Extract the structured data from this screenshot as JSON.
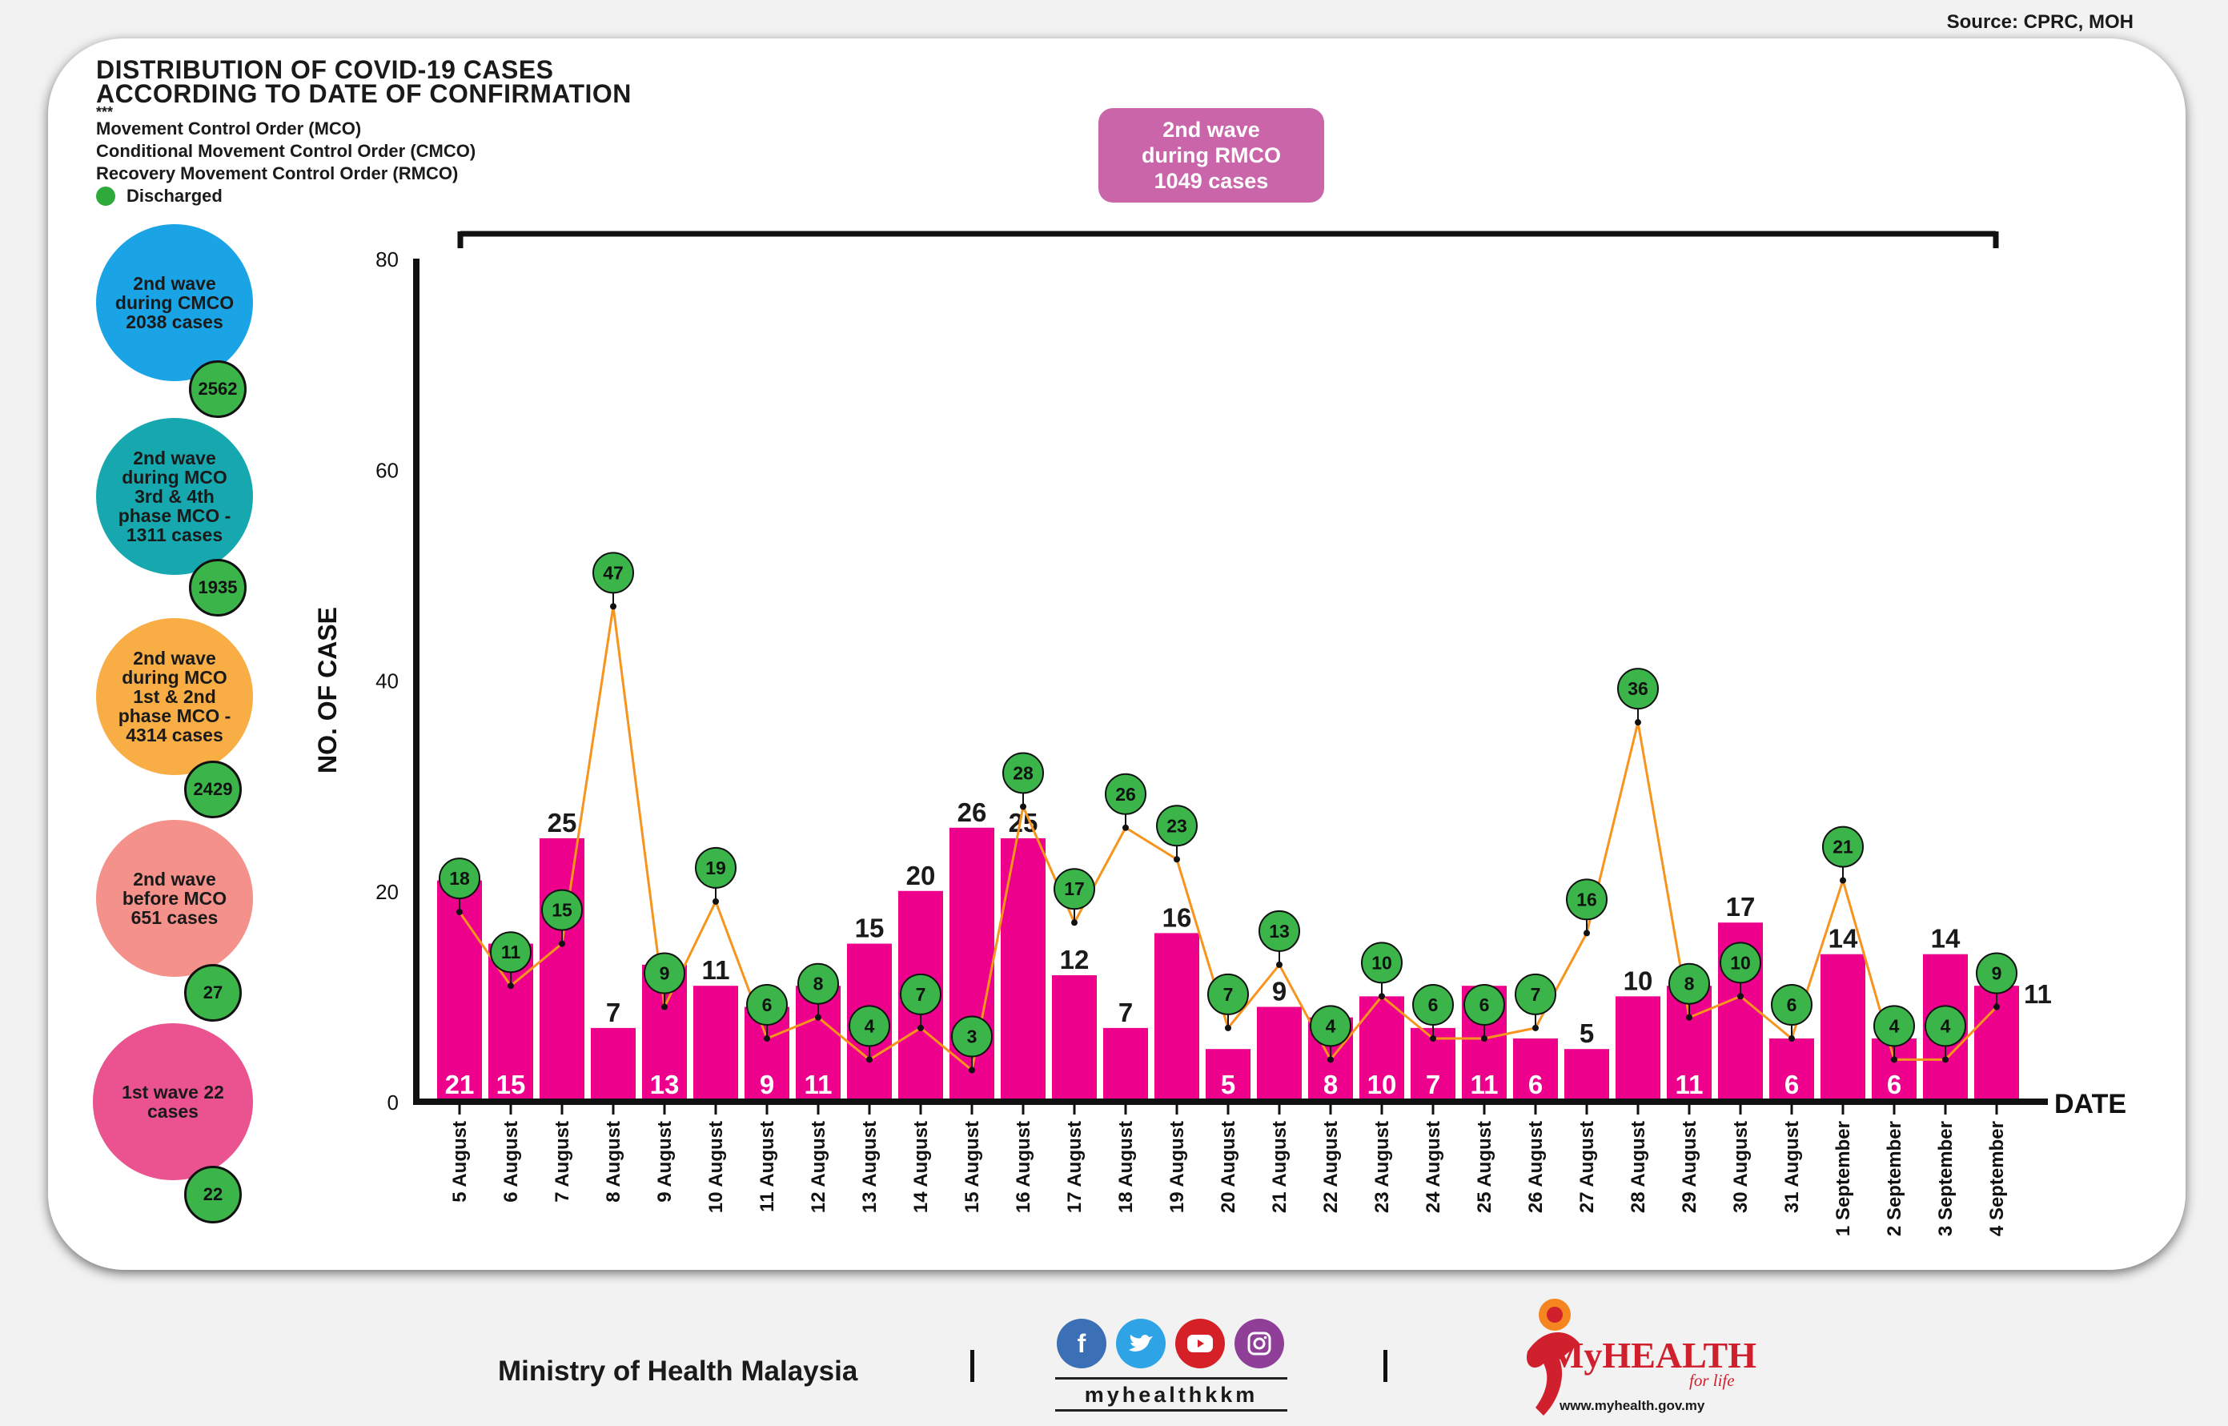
{
  "source": "Source: CPRC, MOH",
  "title_line1": "DISTRIBUTION OF COVID-19 CASES",
  "title_line2": "ACCORDING TO DATE OF CONFIRMATION",
  "stars": "***",
  "legend": {
    "mco": "Movement Control Order (MCO)",
    "cmco": "Conditional Movement Control Order (CMCO)",
    "rmco": "Recovery Movement Control Order (RMCO)",
    "discharged": "Discharged"
  },
  "colors": {
    "bar": "#ec008c",
    "discharged_line": "#f7941d",
    "discharged_badge": "#3bb44a",
    "rmco_box": "#c965a8"
  },
  "waves": [
    {
      "label": "2nd wave during CMCO 2038 cases",
      "color": "#1aa4e6",
      "discharged": "2562"
    },
    {
      "label": "2nd wave during MCO 3rd & 4th phase MCO - 1311 cases",
      "color": "#16a8ae",
      "discharged": "1935"
    },
    {
      "label": "2nd wave during MCO 1st & 2nd phase MCO - 4314 cases",
      "color": "#f9ad45",
      "discharged": "2429"
    },
    {
      "label": "2nd wave before MCO 651 cases",
      "color": "#f3918a",
      "discharged": "27"
    },
    {
      "label": "1st wave 22 cases",
      "color": "#ea5390",
      "discharged": "22"
    }
  ],
  "rmco_box": {
    "line1": "2nd wave",
    "line2": "during RMCO",
    "line3": "1049 cases"
  },
  "footer": {
    "ministry": "Ministry of Health Malaysia",
    "handle": "myhealthkkm",
    "brand": "MyHEALTH",
    "tagline": "for life",
    "url": "www.myhealth.gov.my",
    "social_icons": [
      "facebook-icon",
      "twitter-icon",
      "youtube-icon",
      "instagram-icon"
    ]
  },
  "chart_data": {
    "type": "bar",
    "ylabel": "NO. OF CASE",
    "xlabel": "DATE",
    "ylim": [
      0,
      80
    ],
    "yticks": [
      0,
      20,
      40,
      60,
      80
    ],
    "categories": [
      "5 August",
      "6 August",
      "7 August",
      "8 August",
      "9 August",
      "10 August",
      "11 August",
      "12 August",
      "13 August",
      "14 August",
      "15 August",
      "16 August",
      "17 August",
      "18 August",
      "19 August",
      "20 August",
      "21 August",
      "22 August",
      "23 August",
      "24 August",
      "25 August",
      "26 August",
      "27 August",
      "28 August",
      "29 August",
      "30 August",
      "31 August",
      "1 September",
      "2 September",
      "3 September",
      "4 September"
    ],
    "series": [
      {
        "values": [
          21,
          15,
          25,
          7,
          13,
          11,
          9,
          11,
          15,
          20,
          26,
          25,
          12,
          7,
          16,
          5,
          9,
          8,
          10,
          7,
          11,
          6,
          5,
          10,
          11,
          17,
          6,
          14,
          6,
          14,
          11
        ]
      },
      {
        "name": "Discharged",
        "values": [
          18,
          11,
          15,
          47,
          9,
          19,
          6,
          8,
          4,
          7,
          3,
          28,
          17,
          26,
          23,
          7,
          13,
          4,
          10,
          6,
          6,
          7,
          16,
          36,
          8,
          10,
          6,
          21,
          4,
          4,
          9
        ]
      }
    ]
  }
}
